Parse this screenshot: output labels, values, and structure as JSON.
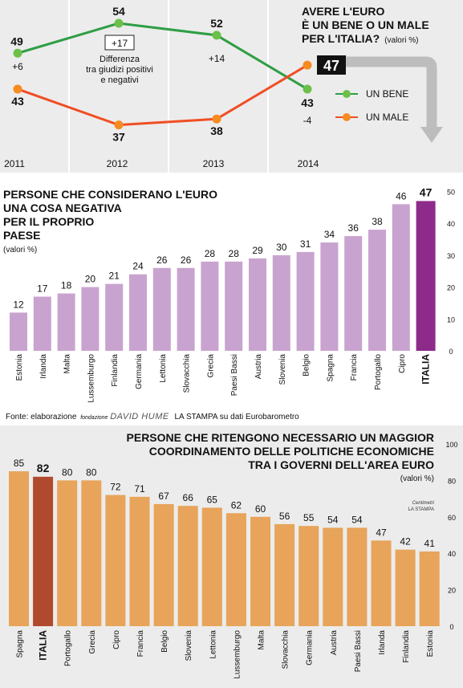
{
  "colors": {
    "green": "#6cc04a",
    "green_line": "#2f9e44",
    "red": "#f04e23",
    "orange_dot": "#f68b1f",
    "purple": "#c9a3cf",
    "purple_highlight": "#8e2a8a",
    "orange_bar": "#e7a45a",
    "red_bar": "#b04a2e",
    "top_bg": "#ececec",
    "bottom_bg": "#ececec",
    "grey_arrow": "#bdbdbd"
  },
  "chart_data": [
    {
      "type": "line",
      "title_lines": [
        "AVERE L'EURO",
        "È UN BENE O UN MALE",
        "PER L'ITALIA?"
      ],
      "title_units": "(valori %)",
      "x": [
        "2011",
        "2012",
        "2013",
        "2014"
      ],
      "series": [
        {
          "name": "UN BENE",
          "values": [
            49,
            54,
            52,
            43
          ]
        },
        {
          "name": "UN MALE",
          "values": [
            43,
            37,
            38,
            47
          ]
        }
      ],
      "differences": [
        "+6",
        "+17",
        "+14",
        "-4"
      ],
      "difference_note_lines": [
        "Differenza",
        "tra giudizi positivi",
        "e negativi"
      ],
      "highlight_value": "47"
    },
    {
      "type": "bar",
      "title_lines": [
        "PERSONE CHE CONSIDERANO L'EURO",
        "UNA COSA NEGATIVA",
        "PER IL PROPRIO",
        "PAESE"
      ],
      "title_units": "(valori %)",
      "categories": [
        "Estonia",
        "Irlanda",
        "Malta",
        "Lussemburgo",
        "Finlandia",
        "Germania",
        "Lettonia",
        "Slovacchia",
        "Grecia",
        "Paesi Bassi",
        "Austria",
        "Slovenia",
        "Belgio",
        "Spagna",
        "Francia",
        "Portogallo",
        "Cipro",
        "ITALIA"
      ],
      "values": [
        12,
        17,
        18,
        20,
        21,
        24,
        26,
        26,
        28,
        28,
        29,
        30,
        31,
        34,
        36,
        38,
        46,
        47
      ],
      "highlight": "ITALIA",
      "ylim": [
        0,
        50
      ],
      "yticks": [
        0,
        10,
        20,
        30,
        40,
        50
      ]
    },
    {
      "type": "bar",
      "title_lines": [
        "PERSONE CHE RITENGONO NECESSARIO UN MAGGIOR",
        "COORDINAMENTO DELLE POLITICHE ECONOMICHE",
        "TRA I GOVERNI DELL'AREA EURO"
      ],
      "title_units": "(valori %)",
      "categories": [
        "Spagna",
        "ITALIA",
        "Portogallo",
        "Grecia",
        "Cipro",
        "Francia",
        "Belgio",
        "Slovenia",
        "Lettonia",
        "Lussemburgo",
        "Malta",
        "Slovacchia",
        "Germania",
        "Austria",
        "Paesi Bassi",
        "Irlanda",
        "Finlandia",
        "Estonia"
      ],
      "values": [
        85,
        82,
        80,
        80,
        72,
        71,
        67,
        66,
        65,
        62,
        60,
        56,
        55,
        54,
        54,
        47,
        42,
        41
      ],
      "highlight": "ITALIA",
      "ylim": [
        0,
        100
      ],
      "yticks": [
        0,
        20,
        40,
        60,
        80,
        100
      ]
    }
  ],
  "source": {
    "prefix": "Fonte: elaborazione",
    "brand_small": "fondazione",
    "brand": "DAVID HUME",
    "suffix": "LA STAMPA su dati Eurobarometro"
  },
  "credit_lines": [
    "Centimetri",
    "LA STAMPA"
  ]
}
